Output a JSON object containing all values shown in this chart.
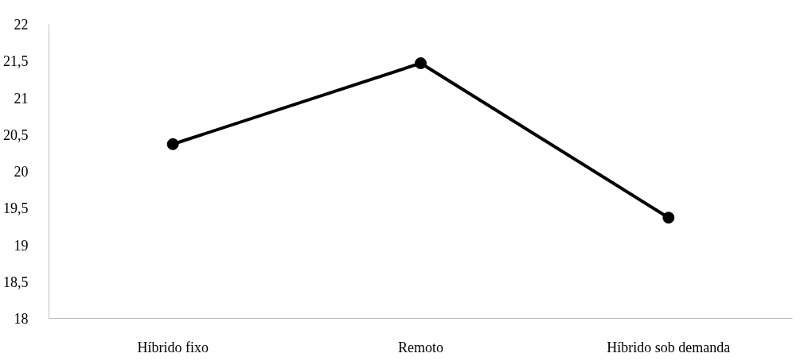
{
  "chart_data": {
    "type": "line",
    "categories": [
      "Híbrido fixo",
      "Remoto",
      "Híbrido sob demanda"
    ],
    "series": [
      {
        "color": "#000000",
        "values": [
          20.37,
          21.47,
          19.37
        ]
      }
    ],
    "ylim": [
      18,
      22
    ],
    "yticks": [
      18,
      {
        "value": 18.5,
        "label": "18,5"
      },
      19,
      {
        "value": 19.5,
        "label": "19,5"
      },
      20,
      {
        "value": 20.5,
        "label": "20,5"
      },
      21,
      {
        "value": 21.5,
        "label": "21,5"
      },
      22
    ],
    "marker": "circle",
    "line_style": "solid",
    "grid": false
  }
}
